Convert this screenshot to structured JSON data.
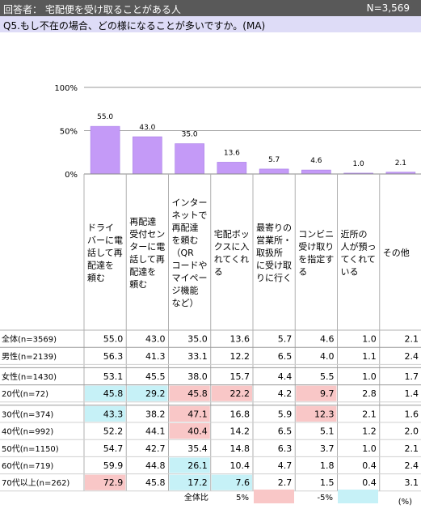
{
  "header": {
    "title": "回答者： 宅配便を受け取ることがある人",
    "n": "N=3,569"
  },
  "question": "Q5.もし不在の場合、どの様になることが多いですか。(MA)",
  "unit": "(%)",
  "legend": {
    "label": "全体比",
    "pos_label": "5%",
    "neg_label": "-5%",
    "pos_color": "#f9c7c7",
    "neg_color": "#c6f1f7"
  },
  "chart_data": {
    "type": "bar",
    "categories": [
      "ドライバーに電話して再配達を頼む",
      "再配達受付センターに電話して再配達を頼む",
      "インターネットで再配達を頼む（QRコードやマイページ機能など）",
      "宅配ボックスに入れてくれる",
      "最寄りの営業所・取扱所に受け取りに行く",
      "コンビニ受け取りを指定する",
      "近所の人が預ってくれている",
      "その他"
    ],
    "values": [
      55.0,
      43.0,
      35.0,
      13.6,
      5.7,
      4.6,
      1.0,
      2.1
    ],
    "value_labels": [
      "55.0",
      "43.0",
      "35.0",
      "13.6",
      "5.7",
      "4.6",
      "1.0",
      "2.1"
    ],
    "yticks": [
      "100%",
      "50%",
      "0%"
    ],
    "ylim": [
      0,
      100
    ],
    "bar_color": "#c49af7"
  },
  "column_labels": [
    [
      "ドライ",
      "バーに電",
      "話して再",
      "配達を",
      "頼む"
    ],
    [
      "再配達",
      "受付セン",
      "ターに電",
      "話して再",
      "配達を",
      "頼む"
    ],
    [
      "インター",
      "ネットで",
      "再配達",
      "を頼む",
      "（QR",
      "コードや",
      "マイペー",
      "ジ機能",
      "など）"
    ],
    [
      "宅配ボッ",
      "クスに入",
      "れてくれ",
      "る"
    ],
    [
      "最寄りの",
      "営業所・",
      "取扱所",
      "に受け取",
      "りに行く"
    ],
    [
      "コンビニ",
      "受け取り",
      "を指定す",
      "る"
    ],
    [
      "近所の",
      "人が預っ",
      "てくれて",
      "いる"
    ],
    [
      "その他"
    ]
  ],
  "rows": [
    {
      "label": "全体(n=3569)",
      "values": [
        "55.0",
        "43.0",
        "35.0",
        "13.6",
        "5.7",
        "4.6",
        "1.0",
        "2.1"
      ],
      "hl": [
        0,
        0,
        0,
        0,
        0,
        0,
        0,
        0
      ]
    },
    {
      "label": "男性(n=2139)",
      "values": [
        "56.3",
        "41.3",
        "33.1",
        "12.2",
        "6.5",
        "4.0",
        "1.1",
        "2.4"
      ],
      "hl": [
        0,
        0,
        0,
        0,
        0,
        0,
        0,
        0
      ]
    },
    {
      "label": "女性(n=1430)",
      "values": [
        "53.1",
        "45.5",
        "38.0",
        "15.7",
        "4.4",
        "5.5",
        "1.0",
        "1.7"
      ],
      "hl": [
        0,
        0,
        0,
        0,
        0,
        0,
        0,
        0
      ]
    },
    {
      "label": "20代(n=72)",
      "values": [
        "45.8",
        "29.2",
        "45.8",
        "22.2",
        "4.2",
        "9.7",
        "2.8",
        "1.4"
      ],
      "hl": [
        -1,
        -1,
        1,
        1,
        0,
        1,
        0,
        0
      ]
    },
    {
      "label": "30代(n=374)",
      "values": [
        "43.3",
        "38.2",
        "47.1",
        "16.8",
        "5.9",
        "12.3",
        "2.1",
        "1.6"
      ],
      "hl": [
        -1,
        0,
        1,
        0,
        0,
        1,
        0,
        0
      ]
    },
    {
      "label": "40代(n=992)",
      "values": [
        "52.2",
        "44.1",
        "40.4",
        "14.2",
        "6.5",
        "5.1",
        "1.2",
        "2.0"
      ],
      "hl": [
        0,
        0,
        1,
        0,
        0,
        0,
        0,
        0
      ]
    },
    {
      "label": "50代(n=1150)",
      "values": [
        "54.7",
        "42.7",
        "35.4",
        "14.8",
        "6.3",
        "3.7",
        "1.0",
        "2.1"
      ],
      "hl": [
        0,
        0,
        0,
        0,
        0,
        0,
        0,
        0
      ]
    },
    {
      "label": "60代(n=719)",
      "values": [
        "59.9",
        "44.8",
        "26.1",
        "10.4",
        "4.7",
        "1.8",
        "0.4",
        "2.4"
      ],
      "hl": [
        0,
        0,
        -1,
        0,
        0,
        0,
        0,
        0
      ]
    },
    {
      "label": "70代以上(n=262)",
      "values": [
        "72.9",
        "45.8",
        "17.2",
        "7.6",
        "2.7",
        "1.5",
        "0.4",
        "3.1"
      ],
      "hl": [
        1,
        0,
        -1,
        -1,
        0,
        0,
        0,
        0
      ]
    }
  ]
}
